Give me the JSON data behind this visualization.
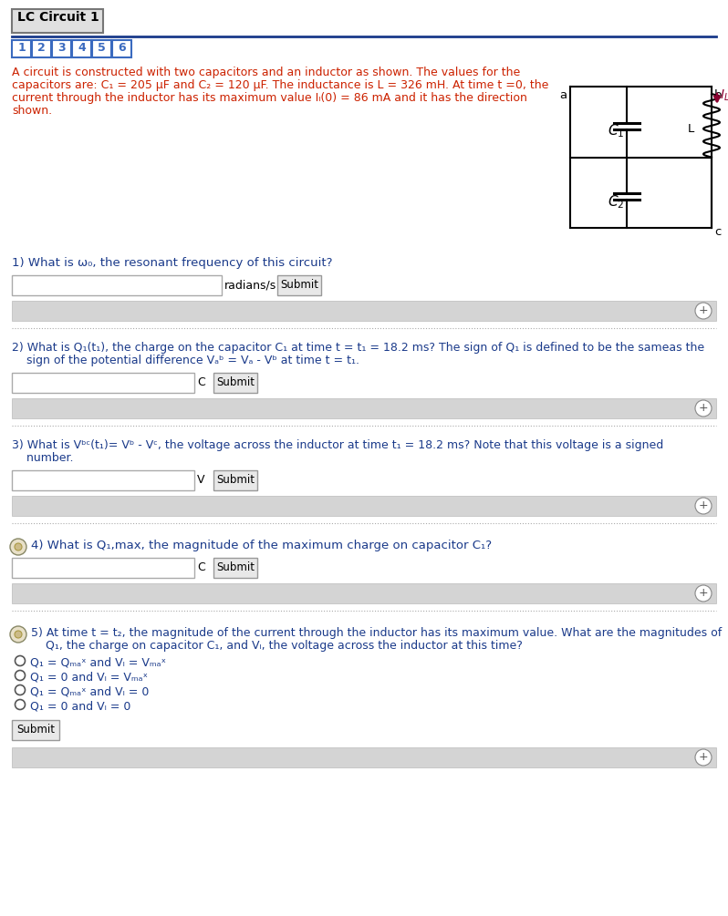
{
  "title": "LC Circuit 1",
  "nav_items": [
    "1",
    "2",
    "3",
    "4",
    "5",
    "6"
  ],
  "intro_line1": "A circuit is constructed with two capacitors and an inductor as shown. The values for the",
  "intro_line2": "capacitors are: C₁ = 205 μF and C₂ = 120 μF. The inductance is L = 326 mH. At time t =0, the",
  "intro_line3": "current through the inductor has its maximum value Iₗ(0) = 86 mA and it has the direction",
  "intro_line4": "shown.",
  "q1": "1) What is ω₀, the resonant frequency of this circuit?",
  "q1_unit": "radians/s",
  "q2a": "2) What is Q₁(t₁), the charge on the capacitor C₁ at time t = t₁ = 18.2 ms? The sign of Q₁ is defined to be the sameas the",
  "q2b": "    sign of the potential difference Vₐᵇ = Vₐ - Vᵇ at time t = t₁.",
  "q2_unit": "C",
  "q3a": "3) What is Vᵇᶜ(t₁)= Vᵇ - Vᶜ, the voltage across the inductor at time t₁ = 18.2 ms? Note that this voltage is a signed",
  "q3b": "    number.",
  "q3_unit": "V",
  "q4": "4) What is Q₁,max, the magnitude of the maximum charge on capacitor C₁?",
  "q4_unit": "C",
  "q5a": "5) At time t = t₂, the magnitude of the current through the inductor has its maximum value. What are the magnitudes of",
  "q5b": "    Q₁, the charge on capacitor C₁, and Vₗ, the voltage across the inductor at this time?",
  "q5_opts": [
    "Q₁ = Qₘₐˣ and Vₗ = Vₘₐˣ",
    "Q₁ = 0 and Vₗ = Vₘₐˣ",
    "Q₁ = Qₘₐˣ and Vₗ = 0",
    "Q₁ = 0 and Vₗ = 0"
  ],
  "white": "#ffffff",
  "title_bg": "#e0e0e0",
  "title_border": "#777777",
  "blue_line": "#1a3a8a",
  "nav_blue": "#3a6abf",
  "text_red": "#cc2200",
  "q_blue": "#1a3a8a",
  "gray_bar": "#d4d4d4",
  "gray_bar2": "#c8c8c8",
  "dot_sep": "#aaaaaa",
  "input_border": "#aaaaaa",
  "btn_bg": "#e8e8e8",
  "btn_border": "#999999"
}
